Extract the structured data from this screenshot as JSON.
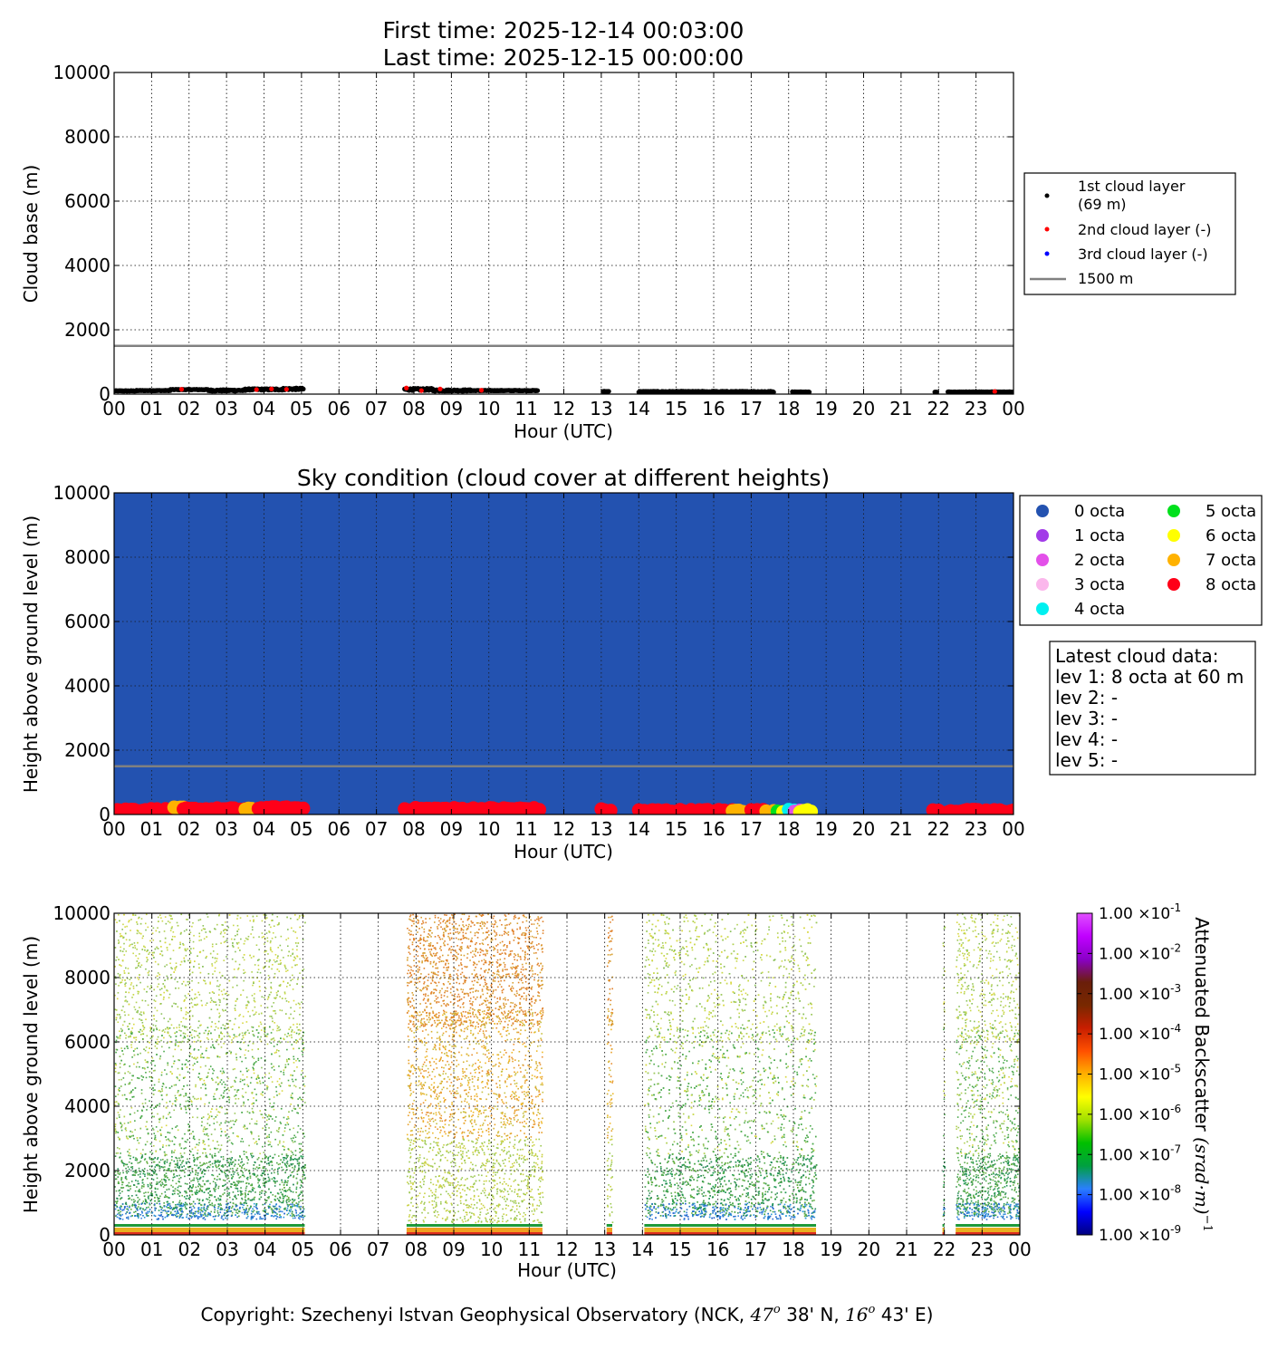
{
  "header": {
    "title_line1": "First time: 2025-12-14 00:03:00",
    "title_line2": "Last time: 2025-12-15 00:00:00"
  },
  "hour_ticks": [
    "00",
    "01",
    "02",
    "03",
    "04",
    "05",
    "06",
    "07",
    "08",
    "09",
    "10",
    "11",
    "12",
    "13",
    "14",
    "15",
    "16",
    "17",
    "18",
    "19",
    "20",
    "21",
    "22",
    "23",
    "00"
  ],
  "chart_data": [
    {
      "type": "scatter",
      "title": "",
      "xlabel": "Hour (UTC)",
      "ylabel": "Cloud base (m)",
      "xlim": [
        0,
        24
      ],
      "ylim": [
        0,
        10000
      ],
      "yticks": [
        "0",
        "2000",
        "4000",
        "6000",
        "8000",
        "10000"
      ],
      "grid": true,
      "legend_position": "right",
      "reference_line": {
        "value": 1500,
        "label": "1500 m",
        "color": "#808080"
      },
      "series": [
        {
          "name": "1st cloud layer\n(69 m)",
          "color": "#000000",
          "segments": [
            {
              "x0": 0.0,
              "x1": 0.6,
              "y0": 90,
              "y1": 110
            },
            {
              "x0": 0.6,
              "x1": 1.5,
              "y0": 100,
              "y1": 120
            },
            {
              "x0": 1.5,
              "x1": 2.5,
              "y0": 130,
              "y1": 150
            },
            {
              "x0": 2.5,
              "x1": 3.5,
              "y0": 90,
              "y1": 140
            },
            {
              "x0": 3.5,
              "x1": 4.5,
              "y0": 120,
              "y1": 170
            },
            {
              "x0": 4.5,
              "x1": 5.05,
              "y0": 130,
              "y1": 190
            },
            {
              "x0": 7.75,
              "x1": 8.5,
              "y0": 110,
              "y1": 180
            },
            {
              "x0": 8.5,
              "x1": 9.5,
              "y0": 90,
              "y1": 140
            },
            {
              "x0": 9.5,
              "x1": 11.3,
              "y0": 100,
              "y1": 120
            },
            {
              "x0": 13.05,
              "x1": 13.2,
              "y0": 80,
              "y1": 90
            },
            {
              "x0": 14.0,
              "x1": 17.6,
              "y0": 60,
              "y1": 90
            },
            {
              "x0": 18.1,
              "x1": 18.55,
              "y0": 60,
              "y1": 75
            },
            {
              "x0": 21.9,
              "x1": 21.95,
              "y0": 60,
              "y1": 65
            },
            {
              "x0": 22.25,
              "x1": 24.0,
              "y0": 60,
              "y1": 75
            }
          ]
        },
        {
          "name": "2nd cloud layer (-)",
          "color": "#ff0000",
          "points": [
            [
              1.8,
              150
            ],
            [
              3.8,
              140
            ],
            [
              4.2,
              160
            ],
            [
              4.6,
              150
            ],
            [
              7.8,
              190
            ],
            [
              8.2,
              110
            ],
            [
              8.7,
              160
            ],
            [
              9.8,
              120
            ],
            [
              23.5,
              80
            ]
          ]
        },
        {
          "name": "3rd cloud layer (-)",
          "color": "#0000ff",
          "points": []
        }
      ]
    },
    {
      "type": "scatter",
      "title": "Sky condition (cloud cover at different heights)",
      "xlabel": "Hour (UTC)",
      "ylabel": "Height above ground level (m)",
      "xlim": [
        0,
        24
      ],
      "ylim": [
        0,
        10000
      ],
      "yticks": [
        "0",
        "2000",
        "4000",
        "6000",
        "8000",
        "10000"
      ],
      "grid": true,
      "background_color": "#2352b0",
      "reference_line": {
        "value": 1500,
        "color": "#808080"
      },
      "legend_position": "right",
      "octa_legend": [
        {
          "label": "0 octa",
          "color": "#2352b0"
        },
        {
          "label": "1 octa",
          "color": "#a23be8"
        },
        {
          "label": "2 octa",
          "color": "#e350e9"
        },
        {
          "label": "3 octa",
          "color": "#fbb7ec"
        },
        {
          "label": "4 octa",
          "color": "#00f0f0"
        },
        {
          "label": "5 octa",
          "color": "#00e01c"
        },
        {
          "label": "6 octa",
          "color": "#ffff00"
        },
        {
          "label": "7 octa",
          "color": "#ffb200"
        },
        {
          "label": "8 octa",
          "color": "#ff0018"
        }
      ],
      "runs": [
        {
          "x0": 0.0,
          "x1": 1.6,
          "y": 100,
          "octa": 8
        },
        {
          "x0": 1.6,
          "x1": 1.85,
          "y": 140,
          "octa": 7
        },
        {
          "x0": 1.85,
          "x1": 3.5,
          "y": 120,
          "octa": 8
        },
        {
          "x0": 3.5,
          "x1": 3.85,
          "y": 110,
          "octa": 7
        },
        {
          "x0": 3.85,
          "x1": 5.05,
          "y": 150,
          "octa": 8
        },
        {
          "x0": 7.75,
          "x1": 11.35,
          "y": 130,
          "octa": 8
        },
        {
          "x0": 13.0,
          "x1": 13.25,
          "y": 90,
          "octa": 8
        },
        {
          "x0": 14.0,
          "x1": 16.5,
          "y": 70,
          "octa": 8
        },
        {
          "x0": 16.5,
          "x1": 17.0,
          "y": 70,
          "octa": 7
        },
        {
          "x0": 17.0,
          "x1": 17.4,
          "y": 70,
          "octa": 8
        },
        {
          "x0": 17.4,
          "x1": 17.7,
          "y": 70,
          "octa": 7
        },
        {
          "x0": 17.7,
          "x1": 17.85,
          "y": 70,
          "octa": 5
        },
        {
          "x0": 17.85,
          "x1": 18.0,
          "y": 70,
          "octa": 6
        },
        {
          "x0": 18.0,
          "x1": 18.15,
          "y": 70,
          "octa": 4
        },
        {
          "x0": 18.15,
          "x1": 18.3,
          "y": 70,
          "octa": 2
        },
        {
          "x0": 18.3,
          "x1": 18.6,
          "y": 70,
          "octa": 6
        },
        {
          "x0": 21.85,
          "x1": 22.0,
          "y": 70,
          "octa": 8
        },
        {
          "x0": 22.25,
          "x1": 24.0,
          "y": 70,
          "octa": 8
        }
      ],
      "latest_cloud_data": {
        "title": "Latest cloud data:",
        "lines": [
          "lev 1: 8 octa at 60 m",
          "lev 2: -",
          "lev 3: -",
          "lev 4: -",
          "lev 5: -"
        ]
      }
    },
    {
      "type": "heatmap",
      "title": "",
      "xlabel": "Hour (UTC)",
      "ylabel": "Height above ground level (m)",
      "xlim": [
        0,
        24
      ],
      "ylim": [
        0,
        10000
      ],
      "yticks": [
        "0",
        "2000",
        "4000",
        "6000",
        "8000",
        "10000"
      ],
      "grid": true,
      "colorbar": {
        "label": "Attenuated Backscatter",
        "unit_label": "(srad·m)",
        "unit_exponent": "−1",
        "tick_mantissa": "1.00 ×10",
        "tick_exponents": [
          "-9",
          "-8",
          "-7",
          "-6",
          "-5",
          "-4",
          "-3",
          "-2",
          "-1"
        ],
        "scale": "log",
        "colors": [
          "#000080",
          "#0000ff",
          "#2a7fff",
          "#00a040",
          "#00c000",
          "#a0e000",
          "#ffff00",
          "#ffb000",
          "#ff5000",
          "#c81e00",
          "#782800",
          "#6a1e0a",
          "#8a00c8",
          "#c000ff",
          "#e050ff"
        ]
      },
      "data_blocks": [
        {
          "x0": 0.0,
          "x1": 5.05,
          "tone": "green",
          "upper_color": "#c8d84a"
        },
        {
          "x0": 7.75,
          "x1": 11.35,
          "tone": "orange",
          "upper_color": "#e89a28"
        },
        {
          "x0": 13.05,
          "x1": 13.2,
          "tone": "orange",
          "upper_color": "#d8c040"
        },
        {
          "x0": 14.05,
          "x1": 18.6,
          "tone": "green",
          "upper_color": "#c8d04a"
        },
        {
          "x0": 21.95,
          "x1": 22.0,
          "tone": "green",
          "upper_color": "#8cc85a"
        },
        {
          "x0": 22.3,
          "x1": 24.0,
          "tone": "green",
          "upper_color": "#c0d44e"
        }
      ]
    }
  ],
  "footer": {
    "copyright_prefix": "Copyright: Szechenyi Istvan Geophysical Observatory (NCK, ",
    "lat_deg": "47",
    "lat_min": " 38' N, ",
    "lon_deg": "16",
    "lon_min": " 43' E)",
    "degree_mark": "o"
  }
}
